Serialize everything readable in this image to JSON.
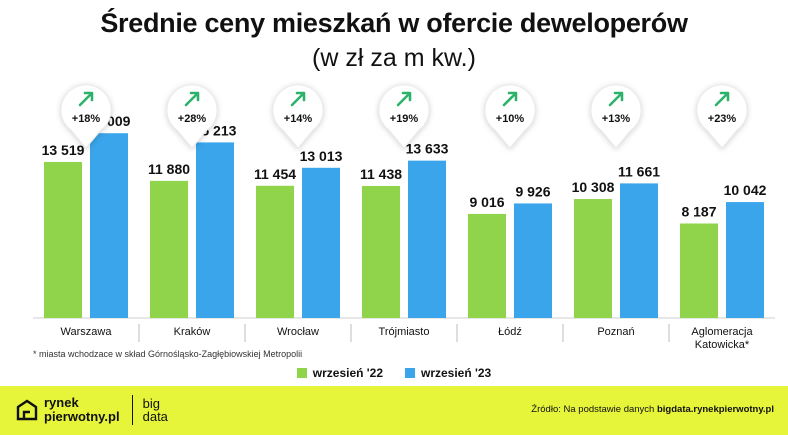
{
  "title": "Średnie ceny mieszkań w ofercie deweloperów",
  "subtitle": "(w zł za m kw.)",
  "footnote": "* miasta wchodzace w skład Górnośląsko-Zagłębiowskiej Metropolii",
  "colors": {
    "series1": "#8fd44a",
    "series2": "#3aa5ea",
    "arrow": "#2db26b",
    "footer": "#e6f53a"
  },
  "chart_data": {
    "type": "bar",
    "title": "Średnie ceny mieszkań w ofercie deweloperów",
    "subtitle": "(w zł za m kw.)",
    "categories": [
      "Warszawa",
      "Kraków",
      "Wrocław",
      "Trójmiasto",
      "Łódź",
      "Poznań",
      "Aglomeracja Katowicka*"
    ],
    "category_lines": [
      [
        "Warszawa"
      ],
      [
        "Kraków"
      ],
      [
        "Wrocław"
      ],
      [
        "Trójmiasto"
      ],
      [
        "Łódź"
      ],
      [
        "Poznań"
      ],
      [
        "Aglomeracja",
        "Katowicka*"
      ]
    ],
    "series": [
      {
        "name": "wrzesień '22",
        "values": [
          13519,
          11880,
          11454,
          11438,
          9016,
          10308,
          8187
        ],
        "labels": [
          "13 519",
          "11 880",
          "11 454",
          "11 438",
          "9 016",
          "10 308",
          "8 187"
        ]
      },
      {
        "name": "wrzesień '23",
        "values": [
          16009,
          15213,
          13013,
          13633,
          9926,
          11661,
          10042
        ],
        "labels": [
          "16 009",
          "15 213",
          "13 013",
          "13 633",
          "9 926",
          "11 661",
          "10 042"
        ]
      }
    ],
    "changes": [
      "+18%",
      "+28%",
      "+14%",
      "+19%",
      "+10%",
      "+13%",
      "+23%"
    ],
    "ylim": [
      0,
      17500
    ],
    "grid": false,
    "legend": "bottom-center",
    "xlabel": "",
    "ylabel": ""
  },
  "legend": {
    "items": [
      "wrzesień '22",
      "wrzesień '23"
    ]
  },
  "footer": {
    "logo_line1": "rynek",
    "logo_line2": "pierwotny.pl",
    "logo_big1": "big",
    "logo_big2": "data",
    "source_prefix": "Źródło: Na podstawie danych ",
    "source_link": "bigdata.rynekpierwotny.pl"
  }
}
